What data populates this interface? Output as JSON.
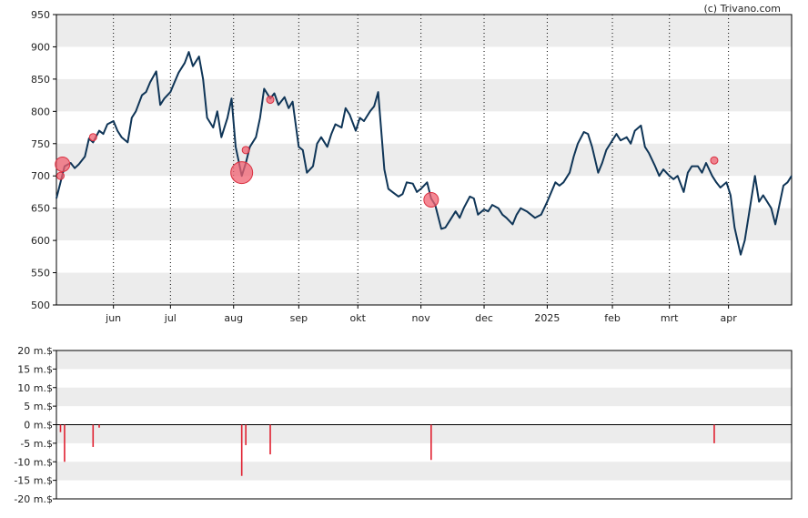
{
  "credit": "(c) Trivano.com",
  "colors": {
    "price_line": "#0f3557",
    "event_fill": "#f06070",
    "event_stroke": "#d93040",
    "volume_bar": "#e02030",
    "band": "#ececec",
    "axis": "#000000"
  },
  "chart_data": [
    {
      "type": "line",
      "title": "",
      "xlabel": "",
      "ylabel": "",
      "ylim": [
        500,
        950
      ],
      "yticks": [
        500,
        550,
        600,
        650,
        700,
        750,
        800,
        850,
        900,
        950
      ],
      "month_labels": [
        {
          "label": "jun",
          "date": "2024-06-03"
        },
        {
          "label": "jul",
          "date": "2024-07-01"
        },
        {
          "label": "aug",
          "date": "2024-08-01"
        },
        {
          "label": "sep",
          "date": "2024-09-02"
        },
        {
          "label": "okt",
          "date": "2024-10-01"
        },
        {
          "label": "nov",
          "date": "2024-11-01"
        },
        {
          "label": "dec",
          "date": "2024-12-02"
        },
        {
          "label": "2025",
          "date": "2025-01-02"
        },
        {
          "label": "feb",
          "date": "2025-02-03"
        },
        {
          "label": "mrt",
          "date": "2025-03-03"
        },
        {
          "label": "apr",
          "date": "2025-04-01"
        }
      ],
      "x_range": [
        "2024-05-06",
        "2025-05-02"
      ],
      "grid": "vertical dotted at month starts, alternating horizontal bands",
      "series": [
        {
          "values": [
            [
              "2024-05-06",
              665
            ],
            [
              "2024-05-08",
              690
            ],
            [
              "2024-05-10",
              715
            ],
            [
              "2024-05-13",
              720
            ],
            [
              "2024-05-15",
              712
            ],
            [
              "2024-05-17",
              718
            ],
            [
              "2024-05-20",
              730
            ],
            [
              "2024-05-22",
              758
            ],
            [
              "2024-05-24",
              752
            ],
            [
              "2024-05-27",
              770
            ],
            [
              "2024-05-29",
              765
            ],
            [
              "2024-05-31",
              780
            ],
            [
              "2024-06-03",
              785
            ],
            [
              "2024-06-05",
              770
            ],
            [
              "2024-06-07",
              760
            ],
            [
              "2024-06-10",
              752
            ],
            [
              "2024-06-12",
              790
            ],
            [
              "2024-06-14",
              800
            ],
            [
              "2024-06-17",
              825
            ],
            [
              "2024-06-19",
              830
            ],
            [
              "2024-06-21",
              845
            ],
            [
              "2024-06-24",
              862
            ],
            [
              "2024-06-26",
              810
            ],
            [
              "2024-06-28",
              820
            ],
            [
              "2024-07-01",
              830
            ],
            [
              "2024-07-03",
              845
            ],
            [
              "2024-07-05",
              860
            ],
            [
              "2024-07-08",
              875
            ],
            [
              "2024-07-10",
              892
            ],
            [
              "2024-07-12",
              870
            ],
            [
              "2024-07-15",
              885
            ],
            [
              "2024-07-17",
              850
            ],
            [
              "2024-07-19",
              790
            ],
            [
              "2024-07-22",
              775
            ],
            [
              "2024-07-24",
              800
            ],
            [
              "2024-07-26",
              760
            ],
            [
              "2024-07-29",
              790
            ],
            [
              "2024-07-31",
              820
            ],
            [
              "2024-08-02",
              745
            ],
            [
              "2024-08-05",
              700
            ],
            [
              "2024-08-07",
              720
            ],
            [
              "2024-08-09",
              745
            ],
            [
              "2024-08-12",
              760
            ],
            [
              "2024-08-14",
              790
            ],
            [
              "2024-08-16",
              835
            ],
            [
              "2024-08-19",
              820
            ],
            [
              "2024-08-21",
              828
            ],
            [
              "2024-08-23",
              810
            ],
            [
              "2024-08-26",
              822
            ],
            [
              "2024-08-28",
              805
            ],
            [
              "2024-08-30",
              815
            ],
            [
              "2024-09-02",
              745
            ],
            [
              "2024-09-04",
              740
            ],
            [
              "2024-09-06",
              705
            ],
            [
              "2024-09-09",
              715
            ],
            [
              "2024-09-11",
              750
            ],
            [
              "2024-09-13",
              760
            ],
            [
              "2024-09-16",
              745
            ],
            [
              "2024-09-18",
              765
            ],
            [
              "2024-09-20",
              780
            ],
            [
              "2024-09-23",
              775
            ],
            [
              "2024-09-25",
              805
            ],
            [
              "2024-09-27",
              795
            ],
            [
              "2024-09-30",
              770
            ],
            [
              "2024-10-02",
              790
            ],
            [
              "2024-10-04",
              785
            ],
            [
              "2024-10-07",
              800
            ],
            [
              "2024-10-09",
              808
            ],
            [
              "2024-10-11",
              830
            ],
            [
              "2024-10-14",
              710
            ],
            [
              "2024-10-16",
              680
            ],
            [
              "2024-10-18",
              675
            ],
            [
              "2024-10-21",
              668
            ],
            [
              "2024-10-23",
              672
            ],
            [
              "2024-10-25",
              690
            ],
            [
              "2024-10-28",
              688
            ],
            [
              "2024-10-30",
              675
            ],
            [
              "2024-11-01",
              680
            ],
            [
              "2024-11-04",
              690
            ],
            [
              "2024-11-06",
              665
            ],
            [
              "2024-11-08",
              655
            ],
            [
              "2024-11-11",
              618
            ],
            [
              "2024-11-13",
              620
            ],
            [
              "2024-11-15",
              630
            ],
            [
              "2024-11-18",
              645
            ],
            [
              "2024-11-20",
              635
            ],
            [
              "2024-11-22",
              650
            ],
            [
              "2024-11-25",
              668
            ],
            [
              "2024-11-27",
              665
            ],
            [
              "2024-11-29",
              640
            ],
            [
              "2024-12-02",
              648
            ],
            [
              "2024-12-04",
              645
            ],
            [
              "2024-12-06",
              655
            ],
            [
              "2024-12-09",
              650
            ],
            [
              "2024-12-11",
              640
            ],
            [
              "2024-12-13",
              635
            ],
            [
              "2024-12-16",
              625
            ],
            [
              "2024-12-18",
              640
            ],
            [
              "2024-12-20",
              650
            ],
            [
              "2024-12-23",
              645
            ],
            [
              "2024-12-27",
              635
            ],
            [
              "2024-12-30",
              640
            ],
            [
              "2025-01-02",
              660
            ],
            [
              "2025-01-06",
              690
            ],
            [
              "2025-01-08",
              685
            ],
            [
              "2025-01-10",
              690
            ],
            [
              "2025-01-13",
              705
            ],
            [
              "2025-01-15",
              730
            ],
            [
              "2025-01-17",
              750
            ],
            [
              "2025-01-20",
              768
            ],
            [
              "2025-01-22",
              765
            ],
            [
              "2025-01-24",
              745
            ],
            [
              "2025-01-27",
              705
            ],
            [
              "2025-01-29",
              720
            ],
            [
              "2025-01-31",
              740
            ],
            [
              "2025-02-03",
              755
            ],
            [
              "2025-02-05",
              765
            ],
            [
              "2025-02-07",
              755
            ],
            [
              "2025-02-10",
              760
            ],
            [
              "2025-02-12",
              750
            ],
            [
              "2025-02-14",
              770
            ],
            [
              "2025-02-17",
              778
            ],
            [
              "2025-02-19",
              745
            ],
            [
              "2025-02-21",
              735
            ],
            [
              "2025-02-24",
              715
            ],
            [
              "2025-02-26",
              700
            ],
            [
              "2025-02-28",
              710
            ],
            [
              "2025-03-03",
              700
            ],
            [
              "2025-03-05",
              695
            ],
            [
              "2025-03-07",
              700
            ],
            [
              "2025-03-10",
              675
            ],
            [
              "2025-03-12",
              705
            ],
            [
              "2025-03-14",
              715
            ],
            [
              "2025-03-17",
              715
            ],
            [
              "2025-03-19",
              705
            ],
            [
              "2025-03-21",
              720
            ],
            [
              "2025-03-24",
              700
            ],
            [
              "2025-03-26",
              690
            ],
            [
              "2025-03-28",
              682
            ],
            [
              "2025-03-31",
              690
            ],
            [
              "2025-04-02",
              670
            ],
            [
              "2025-04-04",
              620
            ],
            [
              "2025-04-07",
              578
            ],
            [
              "2025-04-09",
              600
            ],
            [
              "2025-04-11",
              640
            ],
            [
              "2025-04-14",
              700
            ],
            [
              "2025-04-16",
              660
            ],
            [
              "2025-04-18",
              670
            ],
            [
              "2025-04-22",
              650
            ],
            [
              "2025-04-24",
              625
            ],
            [
              "2025-04-28",
              685
            ],
            [
              "2025-04-30",
              690
            ],
            [
              "2025-05-02",
              700
            ]
          ]
        }
      ],
      "events": [
        {
          "date": "2024-05-08",
          "value": 700,
          "size": "small"
        },
        {
          "date": "2024-05-09",
          "value": 718,
          "size": "medium"
        },
        {
          "date": "2024-05-24",
          "value": 760,
          "size": "small"
        },
        {
          "date": "2024-08-05",
          "value": 705,
          "size": "large"
        },
        {
          "date": "2024-08-07",
          "value": 740,
          "size": "small"
        },
        {
          "date": "2024-08-19",
          "value": 818,
          "size": "small"
        },
        {
          "date": "2024-11-06",
          "value": 663,
          "size": "medium"
        },
        {
          "date": "2025-03-25",
          "value": 724,
          "size": "small"
        }
      ]
    },
    {
      "type": "bar",
      "title": "",
      "xlabel": "",
      "ylabel": "",
      "ylim": [
        -20,
        20
      ],
      "ytick_labels": [
        "20 m.$",
        "15 m.$",
        "10 m.$",
        "5 m.$",
        "0 m.$",
        "-5 m.$",
        "-10 m.$",
        "-15 m.$",
        "-20 m.$"
      ],
      "ytick_values": [
        20,
        15,
        10,
        5,
        0,
        -5,
        -10,
        -15,
        -20
      ],
      "x_range": [
        "2024-05-06",
        "2025-05-02"
      ],
      "values": [
        [
          "2024-05-08",
          -2.0
        ],
        [
          "2024-05-10",
          -10.0
        ],
        [
          "2024-05-24",
          -6.0
        ],
        [
          "2024-05-27",
          -0.8
        ],
        [
          "2024-08-05",
          -13.8
        ],
        [
          "2024-08-07",
          -5.5
        ],
        [
          "2024-08-19",
          -8.0
        ],
        [
          "2024-11-06",
          -9.5
        ],
        [
          "2025-03-25",
          -5.0
        ]
      ]
    }
  ]
}
